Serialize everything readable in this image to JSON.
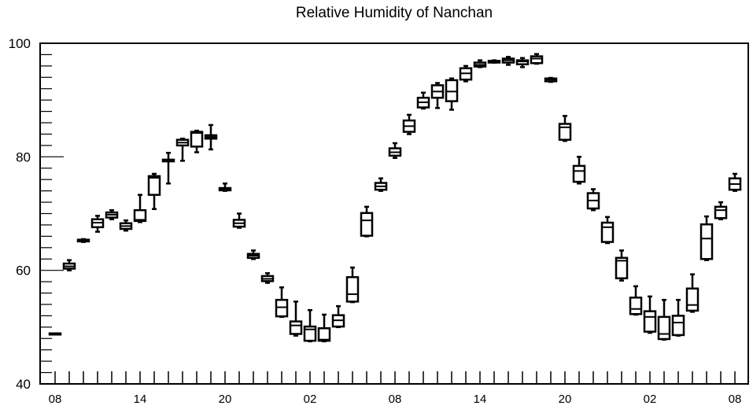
{
  "chart_data": {
    "type": "boxplot",
    "title": "Relative Humidity of Nanchan",
    "xlabel": "",
    "ylabel": "",
    "ylim": [
      40,
      100
    ],
    "y_ticks": [
      "40",
      "60",
      "80",
      "100"
    ],
    "x_ticks": [
      "08",
      "14",
      "20",
      "02",
      "08",
      "14",
      "20",
      "02",
      "08"
    ],
    "x_tick_hours": [
      0,
      6,
      12,
      18,
      24,
      30,
      36,
      42,
      48
    ],
    "series": [
      {
        "hour": 0,
        "low": 48.7,
        "q1": 48.7,
        "median": 48.8,
        "q3": 48.9,
        "high": 48.9
      },
      {
        "hour": 1,
        "low": 60.0,
        "q1": 60.3,
        "median": 60.7,
        "q3": 61.2,
        "high": 61.8
      },
      {
        "hour": 2,
        "low": 65.0,
        "q1": 65.1,
        "median": 65.3,
        "q3": 65.4,
        "high": 65.5
      },
      {
        "hour": 3,
        "low": 66.8,
        "q1": 67.6,
        "median": 68.4,
        "q3": 69.0,
        "high": 69.6
      },
      {
        "hour": 4,
        "low": 69.0,
        "q1": 69.3,
        "median": 69.8,
        "q3": 70.2,
        "high": 70.6
      },
      {
        "hour": 5,
        "low": 67.0,
        "q1": 67.3,
        "median": 67.8,
        "q3": 68.3,
        "high": 68.8
      },
      {
        "hour": 6,
        "low": 68.5,
        "q1": 68.7,
        "median": 68.9,
        "q3": 70.6,
        "high": 73.3
      },
      {
        "hour": 7,
        "low": 70.8,
        "q1": 73.3,
        "median": 76.3,
        "q3": 76.6,
        "high": 77.0
      },
      {
        "hour": 8,
        "low": 75.3,
        "q1": 79.2,
        "median": 79.4,
        "q3": 79.5,
        "high": 80.7
      },
      {
        "hour": 9,
        "low": 79.3,
        "q1": 82.0,
        "median": 82.5,
        "q3": 83.0,
        "high": 83.2
      },
      {
        "hour": 10,
        "low": 80.8,
        "q1": 81.8,
        "median": 84.2,
        "q3": 84.4,
        "high": 84.6
      },
      {
        "hour": 11,
        "low": 81.3,
        "q1": 83.2,
        "median": 83.5,
        "q3": 83.8,
        "high": 85.6
      },
      {
        "hour": 12,
        "low": 74.0,
        "q1": 74.1,
        "median": 74.3,
        "q3": 74.5,
        "high": 75.3
      },
      {
        "hour": 13,
        "low": 67.5,
        "q1": 67.7,
        "median": 68.3,
        "q3": 68.9,
        "high": 70.0
      },
      {
        "hour": 14,
        "low": 62.0,
        "q1": 62.2,
        "median": 62.6,
        "q3": 62.9,
        "high": 63.5
      },
      {
        "hour": 15,
        "low": 57.8,
        "q1": 58.1,
        "median": 58.5,
        "q3": 59.0,
        "high": 59.5
      },
      {
        "hour": 16,
        "low": 51.8,
        "q1": 51.9,
        "median": 53.5,
        "q3": 54.8,
        "high": 57.0
      },
      {
        "hour": 17,
        "low": 48.5,
        "q1": 48.8,
        "median": 50.3,
        "q3": 51.0,
        "high": 54.5
      },
      {
        "hour": 18,
        "low": 47.5,
        "q1": 47.6,
        "median": 49.6,
        "q3": 50.1,
        "high": 53.0
      },
      {
        "hour": 19,
        "low": 47.5,
        "q1": 47.6,
        "median": 47.8,
        "q3": 49.8,
        "high": 52.2
      },
      {
        "hour": 20,
        "low": 50.0,
        "q1": 50.1,
        "median": 51.2,
        "q3": 52.1,
        "high": 53.7
      },
      {
        "hour": 21,
        "low": 54.4,
        "q1": 54.5,
        "median": 55.8,
        "q3": 58.8,
        "high": 60.5
      },
      {
        "hour": 22,
        "low": 66.0,
        "q1": 66.1,
        "median": 68.8,
        "q3": 70.1,
        "high": 71.2
      },
      {
        "hour": 23,
        "low": 74.0,
        "q1": 74.2,
        "median": 74.8,
        "q3": 75.4,
        "high": 76.2
      },
      {
        "hour": 24,
        "low": 79.8,
        "q1": 80.2,
        "median": 80.8,
        "q3": 81.5,
        "high": 82.4
      },
      {
        "hour": 25,
        "low": 84.0,
        "q1": 84.4,
        "median": 85.4,
        "q3": 86.4,
        "high": 87.4
      },
      {
        "hour": 26,
        "low": 88.5,
        "q1": 88.7,
        "median": 89.6,
        "q3": 90.4,
        "high": 91.3
      },
      {
        "hour": 27,
        "low": 88.6,
        "q1": 90.4,
        "median": 91.5,
        "q3": 92.6,
        "high": 93.0
      },
      {
        "hour": 28,
        "low": 88.3,
        "q1": 89.8,
        "median": 91.5,
        "q3": 93.5,
        "high": 93.8
      },
      {
        "hour": 29,
        "low": 93.3,
        "q1": 93.6,
        "median": 94.7,
        "q3": 95.6,
        "high": 96.0
      },
      {
        "hour": 30,
        "low": 95.8,
        "q1": 95.9,
        "median": 96.2,
        "q3": 96.6,
        "high": 97.0
      },
      {
        "hour": 31,
        "low": 96.6,
        "q1": 96.6,
        "median": 96.8,
        "q3": 96.9,
        "high": 97.0
      },
      {
        "hour": 32,
        "low": 96.2,
        "q1": 96.6,
        "median": 97.0,
        "q3": 97.3,
        "high": 97.6
      },
      {
        "hour": 33,
        "low": 95.8,
        "q1": 96.3,
        "median": 96.8,
        "q3": 97.0,
        "high": 97.4
      },
      {
        "hour": 34,
        "low": 96.4,
        "q1": 96.5,
        "median": 97.3,
        "q3": 97.7,
        "high": 98.1
      },
      {
        "hour": 35,
        "low": 93.2,
        "q1": 93.3,
        "median": 93.6,
        "q3": 93.8,
        "high": 93.9
      },
      {
        "hour": 36,
        "low": 82.8,
        "q1": 83.0,
        "median": 85.2,
        "q3": 85.8,
        "high": 87.2
      },
      {
        "hour": 37,
        "low": 75.3,
        "q1": 75.6,
        "median": 77.5,
        "q3": 78.4,
        "high": 80.0
      },
      {
        "hour": 38,
        "low": 70.6,
        "q1": 70.9,
        "median": 72.3,
        "q3": 73.6,
        "high": 74.3
      },
      {
        "hour": 39,
        "low": 64.8,
        "q1": 65.0,
        "median": 67.6,
        "q3": 68.4,
        "high": 69.4
      },
      {
        "hour": 40,
        "low": 58.2,
        "q1": 58.6,
        "median": 61.7,
        "q3": 62.2,
        "high": 63.5
      },
      {
        "hour": 41,
        "low": 52.2,
        "q1": 52.3,
        "median": 53.2,
        "q3": 55.2,
        "high": 57.2
      },
      {
        "hour": 42,
        "low": 49.0,
        "q1": 49.2,
        "median": 51.8,
        "q3": 52.8,
        "high": 55.4
      },
      {
        "hour": 43,
        "low": 47.8,
        "q1": 47.9,
        "median": 48.8,
        "q3": 51.8,
        "high": 54.8
      },
      {
        "hour": 44,
        "low": 48.5,
        "q1": 48.6,
        "median": 50.8,
        "q3": 52.0,
        "high": 54.8
      },
      {
        "hour": 45,
        "low": 52.7,
        "q1": 52.9,
        "median": 53.9,
        "q3": 56.8,
        "high": 59.3
      },
      {
        "hour": 46,
        "low": 61.8,
        "q1": 62.0,
        "median": 65.6,
        "q3": 68.1,
        "high": 69.5
      },
      {
        "hour": 47,
        "low": 69.0,
        "q1": 69.2,
        "median": 70.6,
        "q3": 71.2,
        "high": 72.0
      },
      {
        "hour": 48,
        "low": 74.0,
        "q1": 74.2,
        "median": 75.2,
        "q3": 76.2,
        "high": 77.0
      }
    ]
  }
}
